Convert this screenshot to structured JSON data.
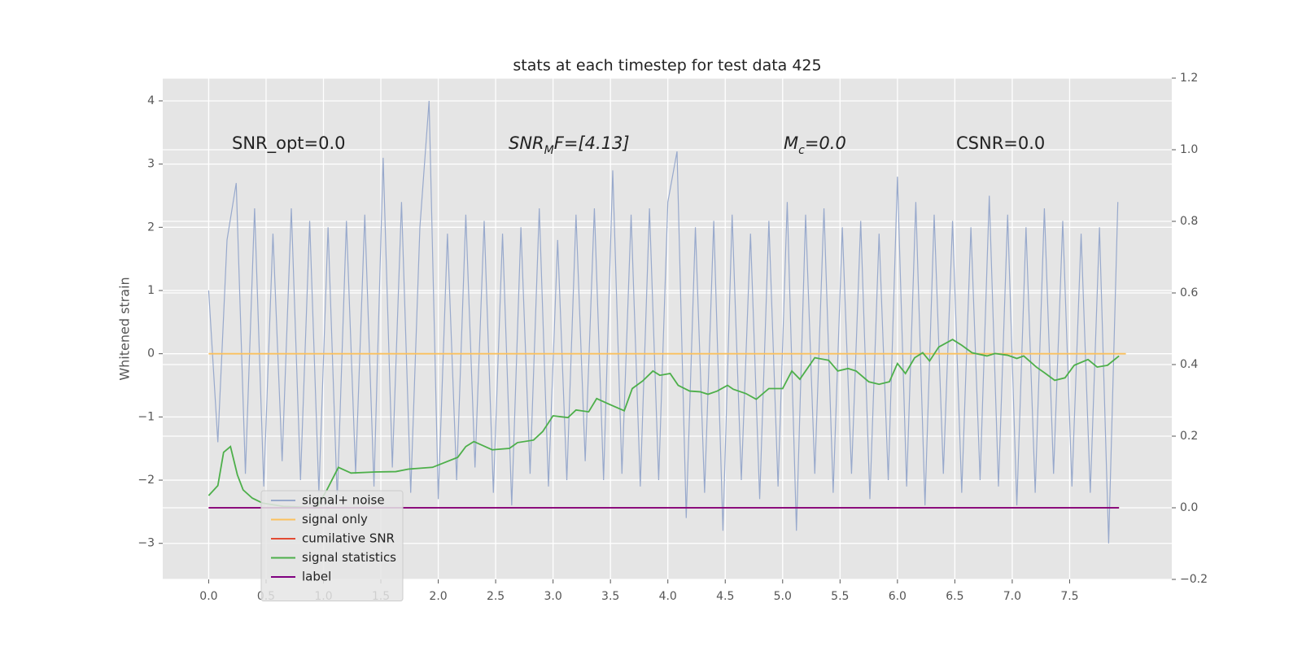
{
  "chart_data": {
    "type": "line",
    "title": "stats at each timestep for test data 425",
    "ylabel": "Whitened strain",
    "xlim": [
      -0.4,
      8.39
    ],
    "ylim": [
      -3.57,
      4.36
    ],
    "y2lim": [
      -0.2,
      1.2
    ],
    "xticks": [
      {
        "value": 0,
        "label": "0.0"
      },
      0.5,
      {
        "value": 1,
        "label": "1.0"
      },
      1.5,
      {
        "value": 2,
        "label": "2.0"
      },
      2.5,
      {
        "value": 3,
        "label": "3.0"
      },
      3.5,
      {
        "value": 4,
        "label": "4.0"
      },
      4.5,
      {
        "value": 5,
        "label": "5.0"
      },
      5.5,
      {
        "value": 6,
        "label": "6.0"
      },
      6.5,
      {
        "value": 7,
        "label": "7.0"
      },
      7.5
    ],
    "yticks": [
      {
        "value": -3,
        "label": "−3"
      },
      {
        "value": -2,
        "label": "−2"
      },
      {
        "value": -1,
        "label": "−1"
      },
      0,
      1,
      2,
      3,
      4
    ],
    "y2ticks": [
      {
        "value": -0.2,
        "label": "−0.2"
      },
      {
        "value": 0,
        "label": "0.0"
      },
      0.2,
      0.4,
      0.6,
      0.8,
      {
        "value": 1,
        "label": "1.0"
      },
      1.2
    ],
    "grid": true,
    "legend": "lower left",
    "annotations": [
      {
        "parts": [
          "SNR_opt=0.0"
        ]
      },
      {
        "parts": [
          "SNR",
          "M",
          "F=[4.13]"
        ]
      },
      {
        "parts": [
          "M",
          "c",
          "=0.0"
        ]
      },
      {
        "parts": [
          "CSNR=0.0"
        ]
      }
    ],
    "series": [
      {
        "name": "signal+ noise",
        "color": "#98a9cc",
        "x": [
          0,
          0.08,
          0.16,
          0.24,
          0.32,
          0.4,
          0.48,
          0.56,
          0.64,
          0.72,
          0.8,
          0.88,
          0.96,
          1.04,
          1.12,
          1.2,
          1.28,
          1.36,
          1.44,
          1.52,
          1.6,
          1.68,
          1.76,
          1.84,
          1.92,
          2.0,
          2.08,
          2.16,
          2.24,
          2.32,
          2.4,
          2.48,
          2.56,
          2.64,
          2.72,
          2.8,
          2.88,
          2.96,
          3.04,
          3.12,
          3.2,
          3.28,
          3.36,
          3.44,
          3.52,
          3.6,
          3.68,
          3.76,
          3.84,
          3.92,
          4.0,
          4.08,
          4.16,
          4.24,
          4.32,
          4.4,
          4.48,
          4.56,
          4.64,
          4.72,
          4.8,
          4.88,
          4.96,
          5.04,
          5.12,
          5.2,
          5.28,
          5.36,
          5.44,
          5.52,
          5.6,
          5.68,
          5.76,
          5.84,
          5.92,
          6.0,
          6.08,
          6.16,
          6.24,
          6.32,
          6.4,
          6.48,
          6.56,
          6.64,
          6.72,
          6.8,
          6.88,
          6.96,
          7.04,
          7.12,
          7.2,
          7.28,
          7.36,
          7.44,
          7.52,
          7.6,
          7.68,
          7.76,
          7.84,
          7.92
        ],
        "values": [
          1.0,
          -1.4,
          1.8,
          2.7,
          -1.9,
          2.3,
          -2.1,
          1.9,
          -1.7,
          2.3,
          -2.0,
          2.1,
          -2.2,
          2.0,
          -2.3,
          2.1,
          -1.9,
          2.2,
          -2.1,
          3.1,
          -1.8,
          2.4,
          -2.2,
          2.0,
          4.0,
          -2.3,
          1.9,
          -2.0,
          2.2,
          -1.8,
          2.1,
          -2.2,
          1.9,
          -2.4,
          2.0,
          -1.9,
          2.3,
          -2.1,
          1.8,
          -2.0,
          2.2,
          -1.7,
          2.3,
          -2.0,
          2.9,
          -1.9,
          2.2,
          -2.1,
          2.3,
          -2.0,
          2.4,
          3.2,
          -2.6,
          2.0,
          -2.2,
          2.1,
          -2.8,
          2.2,
          -2.0,
          1.9,
          -2.3,
          2.1,
          -2.1,
          2.4,
          -2.8,
          2.2,
          -1.9,
          2.3,
          -2.2,
          2.0,
          -1.9,
          2.1,
          -2.3,
          1.9,
          -2.0,
          2.8,
          -2.1,
          2.4,
          -2.4,
          2.2,
          -1.9,
          2.1,
          -2.2,
          2.0,
          -2.0,
          2.5,
          -2.1,
          2.2,
          -2.4,
          2.0,
          -2.2,
          2.3,
          -1.9,
          2.1,
          -2.1,
          1.9,
          -2.2,
          2.0,
          -3.0,
          2.4
        ]
      },
      {
        "name": "signal only",
        "color": "#fbc15e",
        "x": [
          0,
          7.99
        ],
        "values": [
          0,
          0
        ]
      },
      {
        "name": "cumilative SNR",
        "color": "#e24a33",
        "axis": "y2",
        "x": [
          0,
          7.93
        ],
        "values": [
          0,
          0
        ]
      },
      {
        "name": "signal statistics",
        "color": "#4daf4a",
        "axis": "y2",
        "x": [
          0,
          0.08,
          0.13,
          0.19,
          0.25,
          0.3,
          0.38,
          0.47,
          0.65,
          0.94,
          1.03,
          1.13,
          1.24,
          1.45,
          1.63,
          1.74,
          1.95,
          2.17,
          2.24,
          2.31,
          2.47,
          2.62,
          2.69,
          2.83,
          2.91,
          3.0,
          3.13,
          3.2,
          3.31,
          3.38,
          3.49,
          3.62,
          3.69,
          3.78,
          3.87,
          3.93,
          4.02,
          4.09,
          4.19,
          4.28,
          4.35,
          4.43,
          4.52,
          4.57,
          4.68,
          4.77,
          4.88,
          5.0,
          5.08,
          5.15,
          5.28,
          5.4,
          5.48,
          5.57,
          5.64,
          5.75,
          5.84,
          5.93,
          6.0,
          6.07,
          6.15,
          6.22,
          6.28,
          6.36,
          6.48,
          6.56,
          6.65,
          6.78,
          6.85,
          6.96,
          7.04,
          7.1,
          7.21,
          7.29,
          7.37,
          7.46,
          7.54,
          7.66,
          7.74,
          7.83,
          7.93
        ],
        "values": [
          0.034,
          0.062,
          0.155,
          0.171,
          0.092,
          0.05,
          0.027,
          0.013,
          0.004,
          0.0,
          0.05,
          0.113,
          0.097,
          0.1,
          0.101,
          0.108,
          0.113,
          0.141,
          0.171,
          0.185,
          0.162,
          0.166,
          0.182,
          0.189,
          0.213,
          0.257,
          0.252,
          0.273,
          0.268,
          0.305,
          0.289,
          0.271,
          0.333,
          0.354,
          0.382,
          0.37,
          0.375,
          0.342,
          0.326,
          0.324,
          0.317,
          0.326,
          0.342,
          0.331,
          0.319,
          0.303,
          0.333,
          0.333,
          0.382,
          0.359,
          0.419,
          0.412,
          0.382,
          0.389,
          0.382,
          0.352,
          0.345,
          0.352,
          0.403,
          0.375,
          0.419,
          0.433,
          0.41,
          0.449,
          0.47,
          0.454,
          0.433,
          0.424,
          0.431,
          0.426,
          0.417,
          0.424,
          0.393,
          0.375,
          0.356,
          0.363,
          0.398,
          0.414,
          0.393,
          0.398,
          0.424
        ]
      },
      {
        "name": "label",
        "color": "#800080",
        "axis": "y2",
        "x": [
          0,
          7.93
        ],
        "values": [
          0,
          0
        ]
      }
    ]
  }
}
